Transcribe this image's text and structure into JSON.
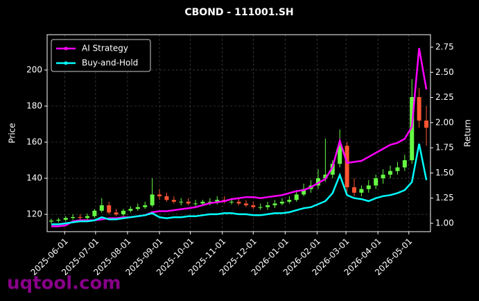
{
  "chart_data": {
    "type": "candlestick",
    "title": "CBOND - 111001.SH",
    "ylabel": "Price",
    "y2label": "Return",
    "watermark": "uqtool.com",
    "legend": "upper left",
    "grid": true,
    "up_color": "#66ff44",
    "down_color": "#ff5533",
    "xlim": [
      "2025-05-15",
      "2026-05-22"
    ],
    "xticks": [
      "2025-06-01",
      "2025-07-01",
      "2025-08-01",
      "2025-09-01",
      "2025-10-01",
      "2025-11-01",
      "2025-12-01",
      "2026-01-01",
      "2026-02-01",
      "2026-03-01",
      "2026-04-01",
      "2026-05-01"
    ],
    "ylim": [
      110.4,
      219.6
    ],
    "yticks": [
      120,
      140,
      160,
      180,
      200
    ],
    "y2lim": [
      0.917,
      2.874
    ],
    "y2ticks": [
      {
        "value": 1,
        "label": "1.00"
      },
      1.25,
      {
        "value": 1.5,
        "label": "1.50"
      },
      1.75,
      {
        "value": 2,
        "label": "2.00"
      },
      2.25,
      {
        "value": 2.5,
        "label": "2.50"
      },
      2.75
    ],
    "x": [
      "2025-05-19",
      "2025-05-26",
      "2025-06-02",
      "2025-06-09",
      "2025-06-16",
      "2025-06-23",
      "2025-06-30",
      "2025-07-07",
      "2025-07-14",
      "2025-07-21",
      "2025-07-28",
      "2025-08-04",
      "2025-08-11",
      "2025-08-18",
      "2025-08-25",
      "2025-09-01",
      "2025-09-08",
      "2025-09-15",
      "2025-09-22",
      "2025-09-29",
      "2025-10-06",
      "2025-10-13",
      "2025-10-20",
      "2025-10-27",
      "2025-11-03",
      "2025-11-10",
      "2025-11-17",
      "2025-11-24",
      "2025-12-01",
      "2025-12-08",
      "2025-12-15",
      "2025-12-22",
      "2025-12-29",
      "2026-01-05",
      "2026-01-12",
      "2026-01-19",
      "2026-01-26",
      "2026-02-02",
      "2026-02-09",
      "2026-02-16",
      "2026-02-23",
      "2026-03-02",
      "2026-03-09",
      "2026-03-16",
      "2026-03-23",
      "2026-03-30",
      "2026-04-06",
      "2026-04-13",
      "2026-04-20",
      "2026-04-27",
      "2026-05-04",
      "2026-05-11",
      "2026-05-18"
    ],
    "open": [
      116,
      116.5,
      117,
      118,
      118.5,
      118,
      119,
      122,
      125,
      121,
      120,
      122,
      123,
      124,
      125,
      131,
      130,
      128,
      127,
      127,
      126,
      126,
      127,
      127,
      128,
      127,
      127,
      126,
      125,
      124,
      124,
      125,
      126,
      127,
      128,
      131,
      134,
      136,
      140,
      142,
      148,
      158,
      135,
      132,
      134,
      136,
      140,
      142,
      144,
      146,
      150,
      185,
      172
    ],
    "high": [
      117.5,
      118,
      119,
      120,
      120,
      120.5,
      123,
      129,
      127,
      123,
      123,
      124.5,
      126,
      127,
      140,
      134,
      132,
      130,
      129,
      129,
      128,
      128,
      129,
      130,
      130,
      129,
      129,
      128,
      127,
      126,
      127,
      128,
      129,
      130,
      133,
      137,
      139,
      145,
      162,
      150,
      167,
      160,
      140,
      136,
      139,
      142,
      145,
      147,
      149,
      153,
      195,
      190,
      180
    ],
    "low": [
      115,
      115.5,
      116,
      117,
      117,
      117,
      118,
      121,
      120,
      119,
      119,
      121,
      122,
      123,
      124,
      128,
      127,
      126,
      125,
      125,
      124.5,
      124.5,
      125,
      125.5,
      126,
      125.5,
      125,
      124,
      123,
      122.5,
      122.5,
      123.5,
      125,
      126,
      127,
      130,
      132,
      134,
      138,
      140,
      146,
      132,
      130,
      130,
      132,
      134,
      137,
      140,
      142,
      144,
      148,
      168,
      158
    ],
    "close": [
      116.5,
      117,
      118,
      118.5,
      118,
      119,
      122,
      125,
      121,
      120,
      122,
      123,
      124,
      125,
      131,
      130,
      128,
      127,
      127,
      126,
      126,
      127,
      127,
      128,
      127,
      127,
      126,
      125,
      124,
      124,
      125,
      126,
      127,
      128,
      131,
      134,
      136,
      140,
      142,
      148,
      158,
      135,
      132,
      134,
      136,
      140,
      142,
      144,
      146,
      150,
      185,
      172,
      168
    ],
    "series": [
      {
        "name": "AI Strategy",
        "color": "#ff00ff",
        "axis": "y2",
        "values": [
          0.97,
          0.97,
          0.98,
          1.02,
          1.03,
          1.03,
          1.03,
          1.04,
          1.05,
          1.05,
          1.06,
          1.06,
          1.07,
          1.08,
          1.11,
          1.12,
          1.12,
          1.13,
          1.14,
          1.15,
          1.16,
          1.18,
          1.2,
          1.21,
          1.22,
          1.24,
          1.25,
          1.26,
          1.26,
          1.25,
          1.26,
          1.27,
          1.28,
          1.3,
          1.32,
          1.33,
          1.36,
          1.4,
          1.44,
          1.56,
          1.82,
          1.6,
          1.61,
          1.62,
          1.66,
          1.7,
          1.74,
          1.78,
          1.8,
          1.84,
          1.96,
          2.74,
          2.33
        ]
      },
      {
        "name": "Buy-and-Hold",
        "color": "#00ffff",
        "axis": "y2",
        "values": [
          0.99,
          0.99,
          1.0,
          1.01,
          1.02,
          1.02,
          1.03,
          1.06,
          1.04,
          1.04,
          1.05,
          1.06,
          1.07,
          1.08,
          1.1,
          1.06,
          1.05,
          1.06,
          1.06,
          1.07,
          1.07,
          1.08,
          1.09,
          1.09,
          1.1,
          1.1,
          1.09,
          1.09,
          1.08,
          1.08,
          1.09,
          1.1,
          1.1,
          1.11,
          1.13,
          1.15,
          1.16,
          1.19,
          1.22,
          1.3,
          1.48,
          1.28,
          1.25,
          1.24,
          1.22,
          1.25,
          1.27,
          1.28,
          1.3,
          1.33,
          1.41,
          1.79,
          1.43
        ]
      }
    ]
  }
}
